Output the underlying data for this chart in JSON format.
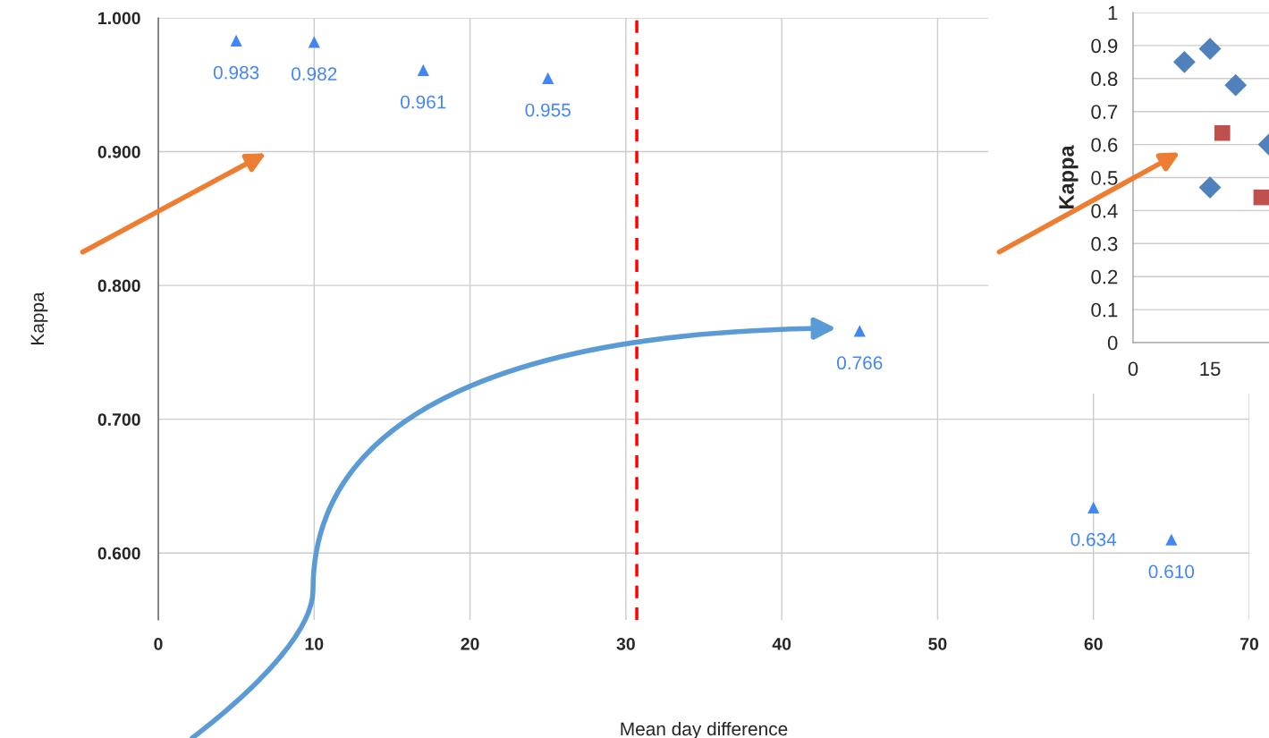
{
  "chart_data": [
    {
      "type": "scatter",
      "xlabel": "Mean day difference",
      "ylabel": "Kappa",
      "xlim": [
        0,
        70
      ],
      "ylim": [
        0.55,
        1.0
      ],
      "xticks": [
        0,
        10,
        20,
        30,
        40,
        50,
        60,
        70
      ],
      "yticks": [
        {
          "value": 0.6,
          "label": "0.600"
        },
        {
          "value": 0.7,
          "label": "0.700"
        },
        {
          "value": 0.8,
          "label": "0.800"
        },
        {
          "value": 0.9,
          "label": "0.900"
        },
        {
          "value": 1.0,
          "label": "1.000"
        }
      ],
      "grid": true,
      "marker": "triangle",
      "series": [
        {
          "color": "#4285f4",
          "x": [
            5,
            10,
            17,
            25,
            45,
            60,
            65
          ],
          "values": [
            0.983,
            0.982,
            0.961,
            0.955,
            0.766,
            0.634,
            0.61
          ],
          "value_labels": [
            "0.983",
            "0.982",
            "0.961",
            "0.955",
            "0.766",
            "0.634",
            "0.610"
          ]
        }
      ],
      "ref_lines": [
        {
          "axis": "x",
          "value": 30.7,
          "color": "#ff0000",
          "line_style": "dashed"
        }
      ]
    },
    {
      "type": "scatter",
      "ylabel": "Kappa",
      "xlim": [
        0,
        26.5
      ],
      "ylim": [
        0,
        1
      ],
      "xticks": [
        0,
        15
      ],
      "yticks": [
        0,
        0.1,
        0.2,
        0.3,
        0.4,
        0.5,
        0.6,
        0.7,
        0.8,
        0.9,
        1
      ],
      "grid": "y",
      "series": [
        {
          "color": "#4f81bd",
          "marker": "diamond",
          "x": [
            10,
            15,
            20,
            15,
            26.5
          ],
          "values": [
            0.85,
            0.89,
            0.78,
            0.47,
            0.6
          ]
        },
        {
          "color": "#c0504d",
          "marker": "square",
          "x": [
            17.4,
            25
          ],
          "values": [
            0.635,
            0.44
          ]
        }
      ]
    }
  ]
}
